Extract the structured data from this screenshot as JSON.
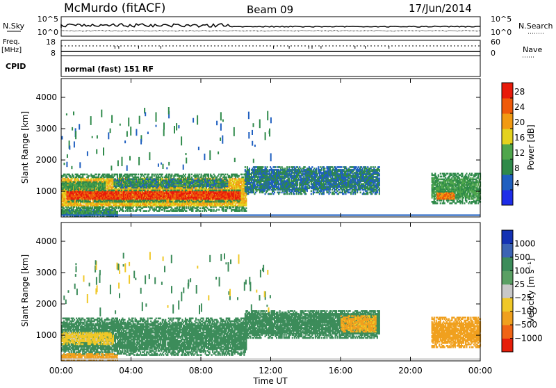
{
  "header": {
    "title": "McMurdo (fitACF)",
    "beam": "Beam 09",
    "date": "17/Jun/2014"
  },
  "strips": {
    "nsky": {
      "label": "N.Sky",
      "ticks": [
        "10^5",
        "10^0"
      ]
    },
    "nsearch": {
      "label": "N.Search",
      "ticks": [
        "10^5",
        "10^0"
      ]
    },
    "freq": {
      "label": "Freq.",
      "unit": "[MHz]",
      "ticks": [
        "18",
        "8"
      ]
    },
    "nave": {
      "label": "Nave",
      "ticks": [
        "60",
        "0"
      ]
    },
    "cpid": {
      "label": "CPID",
      "value": "normal (fast) 151 RF"
    }
  },
  "power_colorbar": {
    "label": "Power [dB]",
    "ticks": [
      "28",
      "24",
      "20",
      "16",
      "12",
      "8",
      "4"
    ]
  },
  "velocity_colorbar": {
    "label": "Velocity [m s⁻¹]",
    "ticks": [
      "1000",
      "500",
      "100",
      "25",
      "−25",
      "−100",
      "−500",
      "−1000"
    ]
  },
  "xaxis": {
    "label": "Time UT"
  },
  "colors": {
    "power": [
      "#1e2de8",
      "#1f5fc0",
      "#2f8a4a",
      "#4fa64c",
      "#e4d21e",
      "#f29a12",
      "#ef5a0a",
      "#e81a0a"
    ],
    "velocity": [
      "#1432b4",
      "#3c64b4",
      "#3c8c5a",
      "#5aa064",
      "#c8c8c8",
      "#f0c828",
      "#f0a01e",
      "#f06414",
      "#e61e0a"
    ]
  },
  "chart_data": [
    {
      "type": "heatmap",
      "name": "power",
      "xlabel": "Time UT",
      "ylabel": "Slant Range [km]",
      "x_ticks": [
        "00:00",
        "04:00",
        "08:00",
        "12:00",
        "16:00",
        "20:00",
        "00:00"
      ],
      "y_ticks": [
        1000,
        2000,
        3000,
        4000
      ],
      "ylim": [
        180,
        4600
      ],
      "xlim_hours": [
        0,
        24
      ],
      "colorbar": {
        "label": "Power [dB]",
        "ticks": [
          4,
          8,
          12,
          16,
          20,
          24,
          28
        ],
        "range": [
          0,
          32
        ]
      },
      "regions": [
        {
          "t0": 0.0,
          "t1": 10.6,
          "r0": 350,
          "r1": 1550,
          "v": 20
        },
        {
          "t0": 0.3,
          "t1": 10.2,
          "r0": 650,
          "r1": 1050,
          "v": 28
        },
        {
          "t0": 0.0,
          "t1": 2.5,
          "r0": 1050,
          "r1": 1300,
          "v": 12
        },
        {
          "t0": 3.0,
          "t1": 9.5,
          "r0": 1100,
          "r1": 1400,
          "v": 10
        },
        {
          "t0": 0.0,
          "t1": 3.2,
          "r0": 200,
          "r1": 400,
          "v": 10
        },
        {
          "t0": 10.5,
          "t1": 18.2,
          "r0": 900,
          "r1": 1800,
          "v": 8
        },
        {
          "t0": 21.2,
          "t1": 24.0,
          "r0": 600,
          "r1": 1550,
          "v": 12
        },
        {
          "t0": 21.5,
          "t1": 22.5,
          "r0": 700,
          "r1": 1000,
          "v": 24
        }
      ]
    },
    {
      "type": "heatmap",
      "name": "velocity",
      "xlabel": "Time UT",
      "ylabel": "Slant Range [km]",
      "x_ticks": [
        "00:00",
        "04:00",
        "08:00",
        "12:00",
        "16:00",
        "20:00",
        "00:00"
      ],
      "y_ticks": [
        1000,
        2000,
        3000,
        4000
      ],
      "ylim": [
        180,
        4600
      ],
      "xlim_hours": [
        0,
        24
      ],
      "colorbar": {
        "label": "Velocity [m s⁻¹]",
        "ticks": [
          1000,
          500,
          100,
          25,
          -25,
          -100,
          -500,
          -1000
        ]
      },
      "regions": [
        {
          "t0": 0.0,
          "t1": 10.6,
          "r0": 350,
          "r1": 1550,
          "v": 150
        },
        {
          "t0": 0.0,
          "t1": 3.0,
          "r0": 700,
          "r1": 1100,
          "v": -60
        },
        {
          "t0": 0.0,
          "t1": 3.2,
          "r0": 200,
          "r1": 400,
          "v": -200
        },
        {
          "t0": 10.5,
          "t1": 18.2,
          "r0": 900,
          "r1": 1800,
          "v": 150
        },
        {
          "t0": 16.0,
          "t1": 18.0,
          "r0": 1100,
          "r1": 1600,
          "v": -120
        },
        {
          "t0": 21.2,
          "t1": 24.0,
          "r0": 600,
          "r1": 1550,
          "v": -150
        }
      ]
    }
  ]
}
